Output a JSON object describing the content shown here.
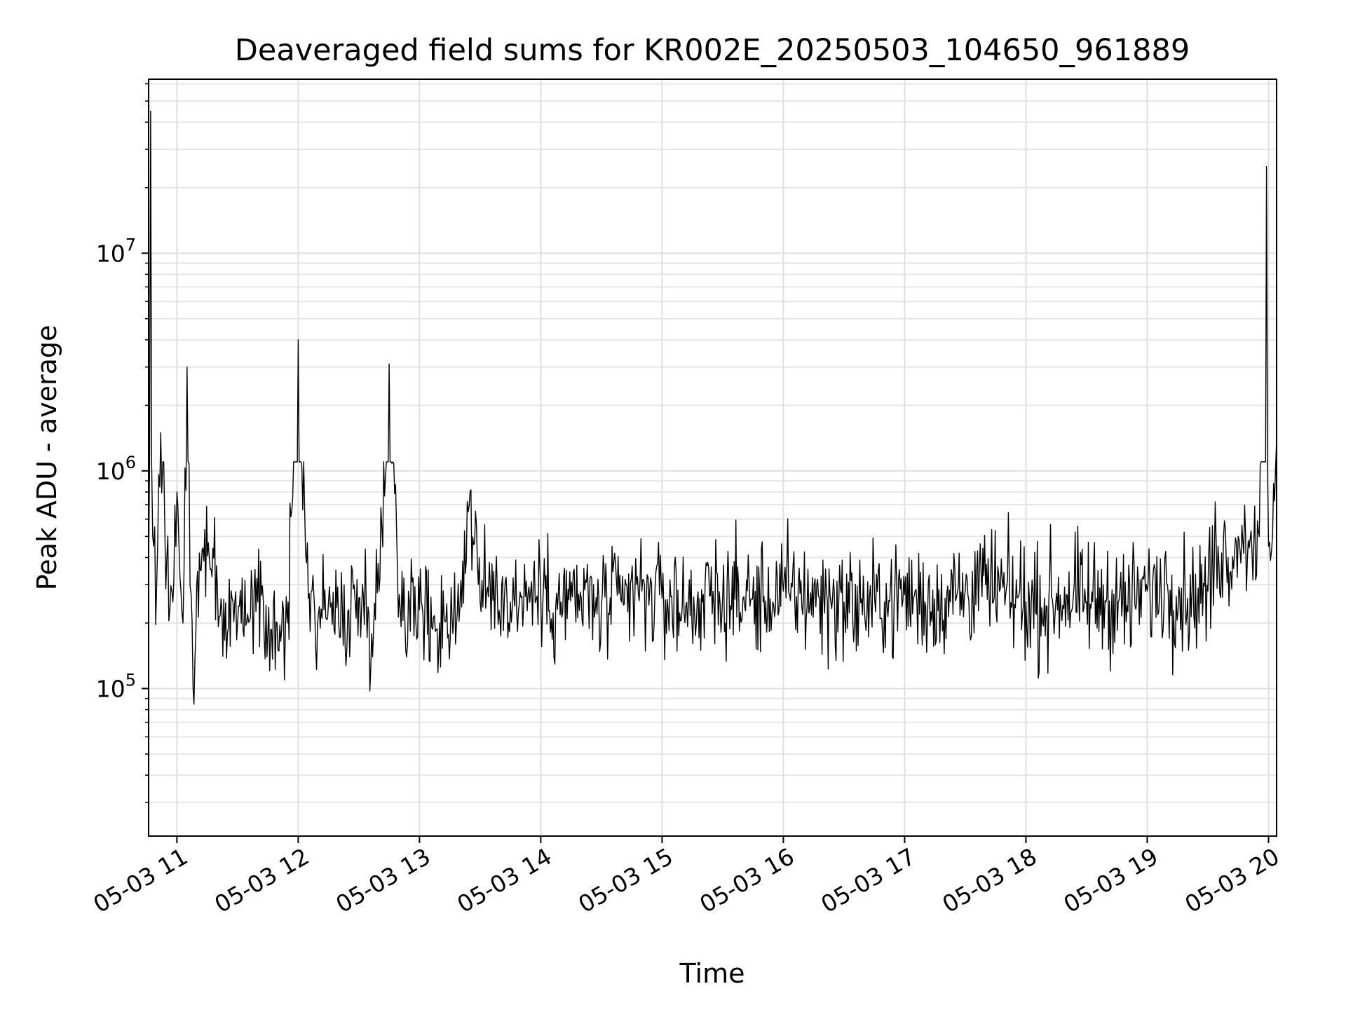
{
  "chart_data": {
    "type": "line",
    "title": "Deaveraged field sums for KR002E_20250503_104650_961889",
    "xlabel": "Time",
    "ylabel": "Peak ADU - average",
    "yscale": "log",
    "grid": true,
    "legend": "none",
    "xlim": [
      "2025-05-03 10:46",
      "2025-05-03 20:04"
    ],
    "ylim": [
      21000,
      63000000
    ],
    "x_ticks": [
      {
        "value": "2025-05-03 11:00",
        "label": "05-03 11"
      },
      {
        "value": "2025-05-03 12:00",
        "label": "05-03 12"
      },
      {
        "value": "2025-05-03 13:00",
        "label": "05-03 13"
      },
      {
        "value": "2025-05-03 14:00",
        "label": "05-03 14"
      },
      {
        "value": "2025-05-03 15:00",
        "label": "05-03 15"
      },
      {
        "value": "2025-05-03 16:00",
        "label": "05-03 16"
      },
      {
        "value": "2025-05-03 17:00",
        "label": "05-03 17"
      },
      {
        "value": "2025-05-03 18:00",
        "label": "05-03 18"
      },
      {
        "value": "2025-05-03 19:00",
        "label": "05-03 19"
      },
      {
        "value": "2025-05-03 20:00",
        "label": "05-03 20"
      }
    ],
    "y_ticks": [
      {
        "value": 100000,
        "base": "10",
        "exp": "5"
      },
      {
        "value": 1000000,
        "base": "10",
        "exp": "6"
      },
      {
        "value": 10000000,
        "base": "10",
        "exp": "7"
      }
    ],
    "series": [
      {
        "color": "#000000",
        "x": [
          "2025-05-03 10:46",
          "2025-05-03 10:47",
          "2025-05-03 10:48",
          "2025-05-03 10:50",
          "2025-05-03 10:52",
          "2025-05-03 10:55",
          "2025-05-03 10:58",
          "2025-05-03 11:00",
          "2025-05-03 11:03",
          "2025-05-03 11:05",
          "2025-05-03 11:08",
          "2025-05-03 11:12",
          "2025-05-03 11:16",
          "2025-05-03 11:20",
          "2025-05-03 11:25",
          "2025-05-03 11:30",
          "2025-05-03 11:35",
          "2025-05-03 11:40",
          "2025-05-03 11:45",
          "2025-05-03 11:50",
          "2025-05-03 11:55",
          "2025-05-03 12:00",
          "2025-05-03 12:05",
          "2025-05-03 12:10",
          "2025-05-03 12:15",
          "2025-05-03 12:20",
          "2025-05-03 12:25",
          "2025-05-03 12:30",
          "2025-05-03 12:35",
          "2025-05-03 12:40",
          "2025-05-03 12:45",
          "2025-05-03 12:50",
          "2025-05-03 12:55",
          "2025-05-03 13:00",
          "2025-05-03 13:10",
          "2025-05-03 13:20",
          "2025-05-03 13:25",
          "2025-05-03 13:30",
          "2025-05-03 13:35",
          "2025-05-03 13:45",
          "2025-05-03 13:55",
          "2025-05-03 14:00",
          "2025-05-03 14:10",
          "2025-05-03 14:20",
          "2025-05-03 14:30",
          "2025-05-03 14:40",
          "2025-05-03 14:50",
          "2025-05-03 15:00",
          "2025-05-03 15:10",
          "2025-05-03 15:20",
          "2025-05-03 15:30",
          "2025-05-03 15:40",
          "2025-05-03 15:50",
          "2025-05-03 16:00",
          "2025-05-03 16:10",
          "2025-05-03 16:20",
          "2025-05-03 16:30",
          "2025-05-03 16:40",
          "2025-05-03 16:50",
          "2025-05-03 17:00",
          "2025-05-03 17:10",
          "2025-05-03 17:20",
          "2025-05-03 17:30",
          "2025-05-03 17:40",
          "2025-05-03 17:50",
          "2025-05-03 18:00",
          "2025-05-03 18:10",
          "2025-05-03 18:20",
          "2025-05-03 18:30",
          "2025-05-03 18:40",
          "2025-05-03 18:50",
          "2025-05-03 19:00",
          "2025-05-03 19:10",
          "2025-05-03 19:20",
          "2025-05-03 19:30",
          "2025-05-03 19:35",
          "2025-05-03 19:40",
          "2025-05-03 19:45",
          "2025-05-03 19:50",
          "2025-05-03 19:55",
          "2025-05-03 19:59",
          "2025-05-03 20:00",
          "2025-05-03 20:02",
          "2025-05-03 20:04"
        ],
        "y": [
          350000,
          45000000,
          500000,
          300000,
          1500000,
          400000,
          250000,
          800000,
          200000,
          3000000,
          100000,
          350000,
          400000,
          300000,
          180000,
          200000,
          220000,
          250000,
          180000,
          150000,
          250000,
          4000000,
          260000,
          220000,
          250000,
          200000,
          230000,
          260000,
          220000,
          280000,
          3100000,
          270000,
          250000,
          230000,
          200000,
          240000,
          800000,
          250000,
          300000,
          250000,
          280000,
          270000,
          250000,
          260000,
          240000,
          250000,
          280000,
          260000,
          240000,
          250000,
          270000,
          260000,
          250000,
          280000,
          270000,
          260000,
          250000,
          240000,
          250000,
          270000,
          250000,
          260000,
          280000,
          300000,
          270000,
          250000,
          240000,
          270000,
          250000,
          260000,
          240000,
          280000,
          300000,
          260000,
          280000,
          450000,
          400000,
          500000,
          480000,
          520000,
          25000000,
          450000,
          500000,
          1400000
        ]
      }
    ]
  }
}
